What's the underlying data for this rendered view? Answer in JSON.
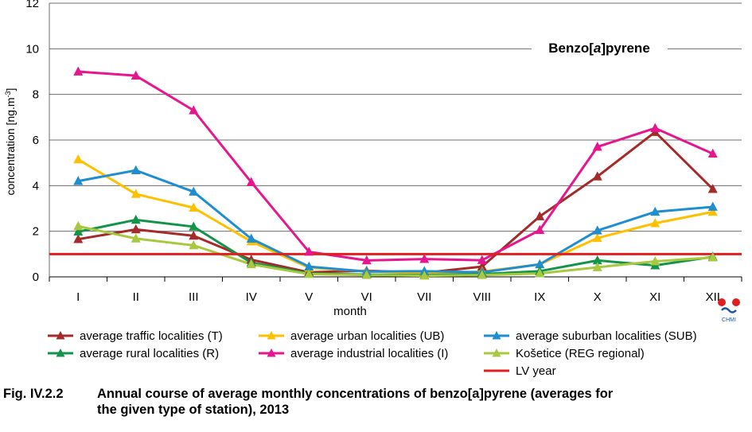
{
  "chart_data": {
    "type": "line",
    "title": "Benzo[a]pyrene",
    "xlabel": "month",
    "ylabel": "concentration [ng.m-3]",
    "ylim": [
      0,
      12
    ],
    "yticks": [
      0,
      2,
      4,
      6,
      8,
      10,
      12
    ],
    "grid": true,
    "categories": [
      "I",
      "II",
      "III",
      "IV",
      "V",
      "VI",
      "VII",
      "VIII",
      "IX",
      "X",
      "XI",
      "XII"
    ],
    "series": [
      {
        "name": "average traffic localities (T)",
        "color": "#a52a2a",
        "values": [
          1.65,
          2.08,
          1.8,
          0.75,
          0.2,
          0.27,
          0.18,
          0.45,
          2.65,
          4.4,
          6.35,
          3.85
        ]
      },
      {
        "name": "average urban localities (UB)",
        "color": "#ffc000",
        "values": [
          5.15,
          3.63,
          3.03,
          1.55,
          0.4,
          0.25,
          0.15,
          0.23,
          0.55,
          1.7,
          2.35,
          2.85
        ]
      },
      {
        "name": "average suburban localities (SUB)",
        "color": "#1e8ed0",
        "values": [
          4.2,
          4.67,
          3.73,
          1.67,
          0.45,
          0.23,
          0.25,
          0.2,
          0.55,
          2.03,
          2.85,
          3.07
        ]
      },
      {
        "name": "average rural localities (R)",
        "color": "#14944a",
        "values": [
          1.98,
          2.5,
          2.2,
          0.62,
          0.15,
          0.1,
          0.08,
          0.12,
          0.25,
          0.72,
          0.5,
          0.88
        ]
      },
      {
        "name": "average industrial localities (I)",
        "color": "#e6168e",
        "values": [
          9.0,
          8.82,
          7.3,
          4.15,
          1.1,
          0.72,
          0.78,
          0.73,
          2.05,
          5.7,
          6.52,
          5.4
        ]
      },
      {
        "name": "Košetice (REG regional)",
        "color": "#a8c840",
        "values": [
          2.22,
          1.68,
          1.38,
          0.55,
          0.12,
          0.08,
          0.05,
          0.08,
          0.15,
          0.42,
          0.68,
          0.85
        ]
      }
    ],
    "reference_line": {
      "name": "LV year",
      "value": 1.0,
      "color": "#e02020"
    },
    "legend_position": "bottom"
  },
  "ylabel_main": "concentration [ng.m",
  "ylabel_sup": "-3",
  "ylabel_end": "]",
  "logo": {
    "text": "CHMI",
    "red": "#e02020",
    "blue": "#1a57a8"
  },
  "caption": {
    "number": "Fig. IV.2.2",
    "line1": "Annual course of average monthly concentrations of benzo[a]pyrene (averages for",
    "line2": "the given type of station), 2013"
  }
}
